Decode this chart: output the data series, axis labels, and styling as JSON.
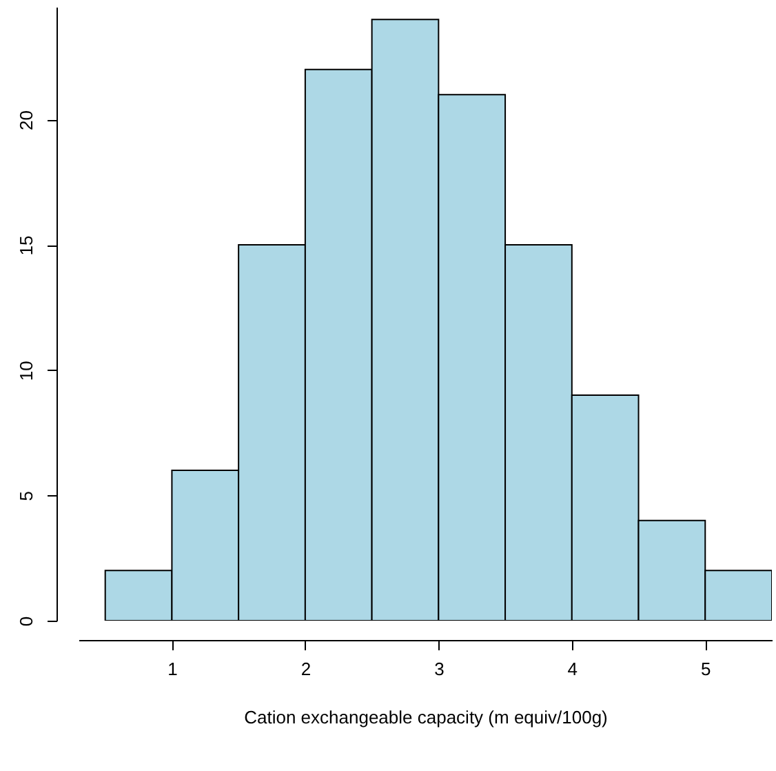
{
  "chart_data": {
    "type": "histogram",
    "xlabel": "Cation exchangeable capacity (m equiv/100g)",
    "bins": [
      0.5,
      1,
      1.5,
      2,
      2.5,
      3,
      3.5,
      4,
      4.5,
      5,
      5.5
    ],
    "values": [
      2,
      6,
      15,
      22,
      24,
      21,
      15,
      9,
      4,
      2
    ],
    "color": "#add8e6",
    "xlim": [
      0.3,
      5.5
    ],
    "xticks": [
      1,
      2,
      3,
      4,
      5
    ],
    "ylim": [
      0,
      24.5
    ],
    "yticks": [
      0,
      5,
      10,
      15,
      20
    ]
  }
}
